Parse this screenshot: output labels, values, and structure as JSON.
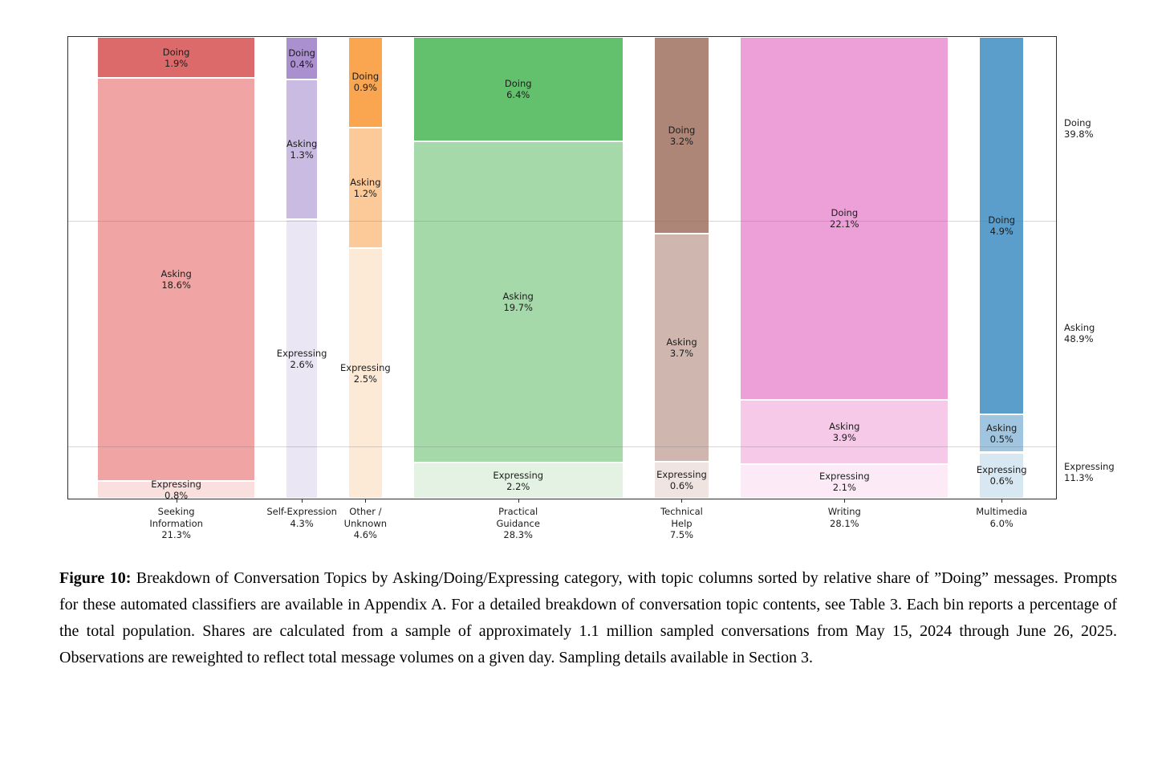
{
  "figure": {
    "caption_label": "Figure 10:",
    "caption_text": " Breakdown of Conversation Topics by Asking/Doing/Expressing category, with topic columns sorted by relative share of ”Doing” messages. Prompts for these automated classifiers are available in Appendix A. For a detailed breakdown of conversation topic contents, see Table 3. Each bin reports a percentage of the total population. Shares are calculated from a sample of approximately 1.1 million sampled conversations from May 15, 2024 through June 26, 2025. Observations are reweighted to reflect total message volumes on a given day. Sampling details available in Section 3."
  },
  "chart_data": {
    "type": "bar",
    "subtype": "mosaic-stacked-columns",
    "note": "Each column width is proportional to topic share of total; segments within a column are fractions of that column. All values are percent of total population.",
    "grid": true,
    "gridlines_at_cumulative": [
      39.8,
      88.7
    ],
    "legend_position": "right-axis",
    "columns": [
      {
        "name": "Seeking Information",
        "axis_label": "Seeking\nInformation\n21.3%",
        "total": 21.3,
        "segments": [
          {
            "name": "Doing",
            "value": 1.9,
            "label": "Doing\n1.9%",
            "color": "#dd6a6a"
          },
          {
            "name": "Asking",
            "value": 18.6,
            "label": "Asking\n18.6%",
            "color": "#f0a4a4"
          },
          {
            "name": "Expressing",
            "value": 0.8,
            "label": "Expressing\n0.8%",
            "color": "#fadfdf"
          }
        ]
      },
      {
        "name": "Self-Expression",
        "axis_label": "Self-Expression\n4.3%",
        "total": 4.3,
        "segments": [
          {
            "name": "Doing",
            "value": 0.4,
            "label": "Doing\n0.4%",
            "color": "#aa90ce"
          },
          {
            "name": "Asking",
            "value": 1.3,
            "label": "Asking\n1.3%",
            "color": "#c9bbe2"
          },
          {
            "name": "Expressing",
            "value": 2.6,
            "label": "Expressing\n2.6%",
            "color": "#eae6f4"
          }
        ]
      },
      {
        "name": "Other / Unknown",
        "axis_label": "Other /\nUnknown\n4.6%",
        "total": 4.6,
        "segments": [
          {
            "name": "Doing",
            "value": 0.9,
            "label": "Doing\n0.9%",
            "color": "#faa651"
          },
          {
            "name": "Asking",
            "value": 1.2,
            "label": "Asking\n1.2%",
            "color": "#fcca98"
          },
          {
            "name": "Expressing",
            "value": 2.5,
            "label": "Expressing\n2.5%",
            "color": "#fdead6"
          }
        ]
      },
      {
        "name": "Practical Guidance",
        "axis_label": "Practical\nGuidance\n28.3%",
        "total": 28.3,
        "segments": [
          {
            "name": "Doing",
            "value": 6.4,
            "label": "Doing\n6.4%",
            "color": "#63c06d"
          },
          {
            "name": "Asking",
            "value": 19.7,
            "label": "Asking\n19.7%",
            "color": "#a6d9a9"
          },
          {
            "name": "Expressing",
            "value": 2.2,
            "label": "Expressing\n2.2%",
            "color": "#e3f2e3"
          }
        ]
      },
      {
        "name": "Technical Help",
        "axis_label": "Technical\nHelp\n7.5%",
        "total": 7.5,
        "segments": [
          {
            "name": "Doing",
            "value": 3.2,
            "label": "Doing\n3.2%",
            "color": "#ae8678"
          },
          {
            "name": "Asking",
            "value": 3.7,
            "label": "Asking\n3.7%",
            "color": "#cfb7af"
          },
          {
            "name": "Expressing",
            "value": 0.6,
            "label": "Expressing\n0.6%",
            "color": "#efe4e0"
          }
        ]
      },
      {
        "name": "Writing",
        "axis_label": "Writing\n28.1%",
        "total": 28.1,
        "segments": [
          {
            "name": "Doing",
            "value": 22.1,
            "label": "Doing\n22.1%",
            "color": "#eda0d8"
          },
          {
            "name": "Asking",
            "value": 3.9,
            "label": "Asking\n3.9%",
            "color": "#f7c9e9"
          },
          {
            "name": "Expressing",
            "value": 2.1,
            "label": "Expressing\n2.1%",
            "color": "#fcebf7"
          }
        ]
      },
      {
        "name": "Multimedia",
        "axis_label": "Multimedia\n6.0%",
        "total": 6.0,
        "segments": [
          {
            "name": "Doing",
            "value": 4.9,
            "label": "Doing\n4.9%",
            "color": "#5c9ecb"
          },
          {
            "name": "Asking",
            "value": 0.5,
            "label": "Asking\n0.5%",
            "color": "#a0c5e0"
          },
          {
            "name": "Expressing",
            "value": 0.6,
            "label": "Expressing\n0.6%",
            "color": "#d8e8f2"
          }
        ]
      }
    ],
    "right_axis_totals": [
      {
        "name": "Doing",
        "share": 39.8,
        "label": "Doing\n39.8%"
      },
      {
        "name": "Asking",
        "share": 48.9,
        "label": "Asking\n48.9%"
      },
      {
        "name": "Expressing",
        "share": 11.3,
        "label": "Expressing\n11.3%"
      }
    ]
  }
}
